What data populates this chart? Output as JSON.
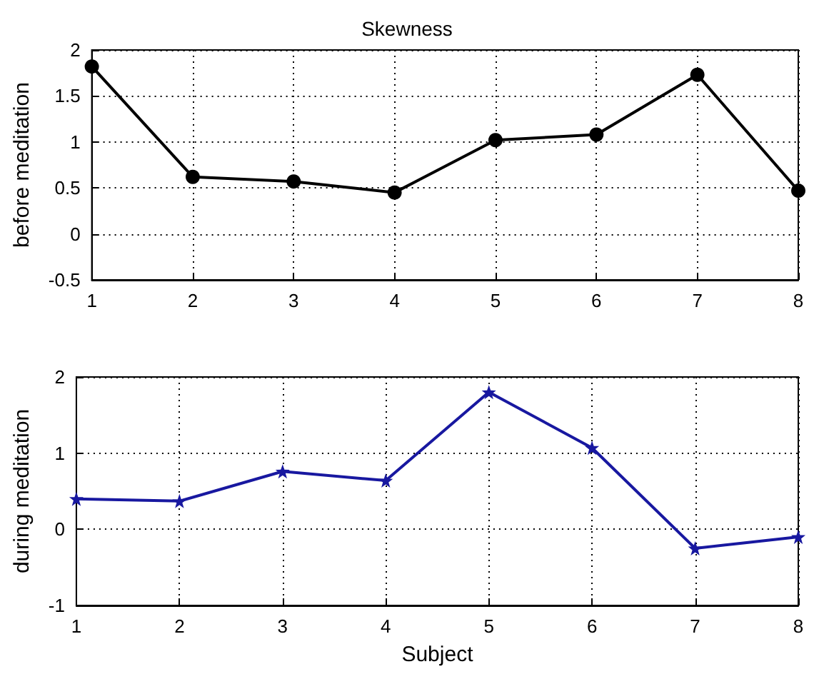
{
  "chart_data": [
    {
      "type": "line",
      "title": "Skewness",
      "ylabel": "before meditation",
      "x": [
        1,
        2,
        3,
        4,
        5,
        6,
        7,
        8
      ],
      "series": [
        {
          "color": "#000000",
          "values": [
            1.82,
            0.62,
            0.57,
            0.45,
            1.02,
            1.08,
            1.73,
            0.47
          ]
        }
      ],
      "xlim": [
        1,
        8
      ],
      "xticks": [
        1,
        2,
        3,
        4,
        5,
        6,
        7,
        8
      ],
      "ylim": [
        -0.5,
        2
      ],
      "yticks": [
        -0.5,
        0,
        0.5,
        1,
        1.5,
        2
      ],
      "grid": true,
      "marker": "circle",
      "line_style": "solid"
    },
    {
      "type": "line",
      "xlabel": "Subject",
      "ylabel": "during meditation",
      "x": [
        1,
        2,
        3,
        4,
        5,
        6,
        7,
        8
      ],
      "series": [
        {
          "color": "#1818a0",
          "values": [
            0.4,
            0.37,
            0.76,
            0.64,
            1.8,
            1.07,
            -0.25,
            -0.1
          ]
        }
      ],
      "xlim": [
        1,
        8
      ],
      "xticks": [
        1,
        2,
        3,
        4,
        5,
        6,
        7,
        8
      ],
      "ylim": [
        -1,
        2
      ],
      "yticks": [
        -1,
        0,
        1,
        2
      ],
      "grid": true,
      "marker": "star",
      "line_style": "solid"
    }
  ]
}
